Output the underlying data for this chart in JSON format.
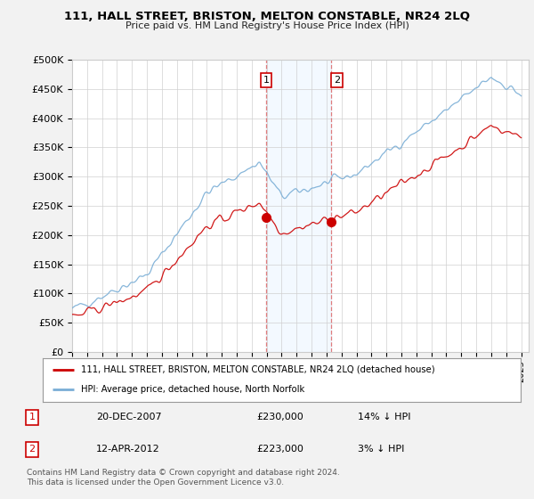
{
  "title": "111, HALL STREET, BRISTON, MELTON CONSTABLE, NR24 2LQ",
  "subtitle": "Price paid vs. HM Land Registry's House Price Index (HPI)",
  "ylabel_ticks": [
    "£0",
    "£50K",
    "£100K",
    "£150K",
    "£200K",
    "£250K",
    "£300K",
    "£350K",
    "£400K",
    "£450K",
    "£500K"
  ],
  "ytick_values": [
    0,
    50000,
    100000,
    150000,
    200000,
    250000,
    300000,
    350000,
    400000,
    450000,
    500000
  ],
  "xlim_start": 1995.0,
  "xlim_end": 2025.5,
  "ylim": [
    0,
    500000
  ],
  "sale1_date": 2007.97,
  "sale1_price": 230000,
  "sale2_date": 2012.28,
  "sale2_price": 223000,
  "legend_line1": "111, HALL STREET, BRISTON, MELTON CONSTABLE, NR24 2LQ (detached house)",
  "legend_line2": "HPI: Average price, detached house, North Norfolk",
  "footer": "Contains HM Land Registry data © Crown copyright and database right 2024.\nThis data is licensed under the Open Government Licence v3.0.",
  "hpi_color": "#7aaed6",
  "price_color": "#cc0000",
  "bg_color": "#f2f2f2",
  "plot_bg": "#ffffff",
  "shade_color": "#ddeeff"
}
